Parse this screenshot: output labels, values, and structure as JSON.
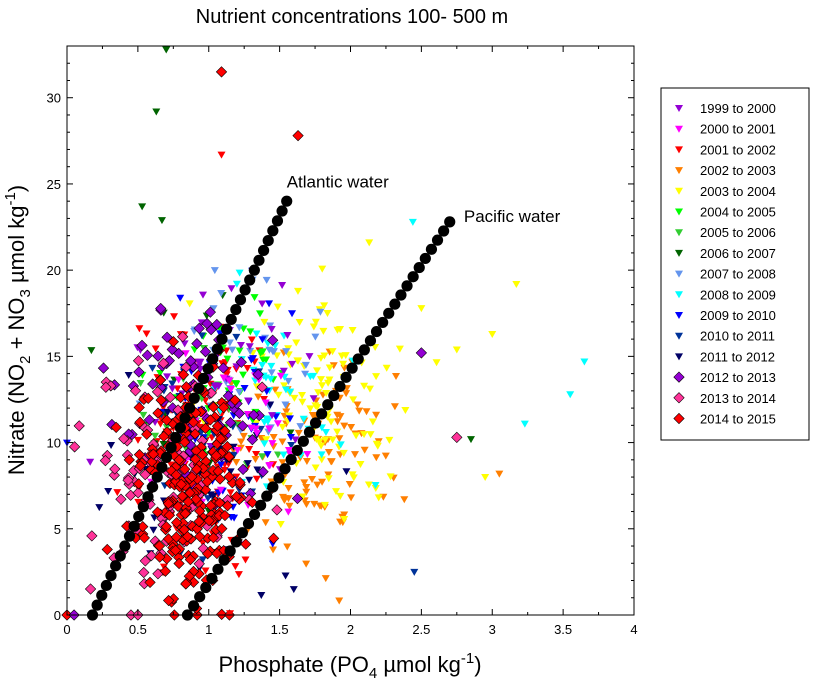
{
  "chart_data": {
    "type": "scatter",
    "title": "Nutrient concentrations 100- 500 m",
    "xlabel": {
      "pre": "Phosphate (PO",
      "sub": "4",
      "post": " µmol kg",
      "sup": "-1",
      "end": ")"
    },
    "ylabel": {
      "pre": "Nitrate (NO",
      "sub1": "2",
      "mid": " + NO",
      "sub2": "3",
      "post": " µmol kg",
      "sup": "-1",
      "end": ")"
    },
    "xlim": [
      0,
      4
    ],
    "ylim": [
      0,
      33
    ],
    "x_ticks": [
      0,
      0.5,
      1,
      1.5,
      2,
      2.5,
      3,
      3.5,
      4
    ],
    "x_tick_labels": [
      "0",
      "0.5",
      "1",
      "1.5",
      "2",
      "2.5",
      "3",
      "3.5",
      "4"
    ],
    "y_ticks": [
      0,
      5,
      10,
      15,
      20,
      25,
      30
    ],
    "y_tick_labels": [
      "0",
      "5",
      "10",
      "15",
      "20",
      "25",
      "30"
    ],
    "grid": false,
    "legend_position": "right",
    "legend": [
      {
        "label": "1999  to  2000",
        "color": "#9400D3",
        "marker": "triangle-down"
      },
      {
        "label": "2000  to  2001",
        "color": "#FF00FF",
        "marker": "triangle-down"
      },
      {
        "label": "2001  to  2002",
        "color": "#FF0000",
        "marker": "triangle-down"
      },
      {
        "label": "2002  to  2003",
        "color": "#FF7F00",
        "marker": "triangle-down"
      },
      {
        "label": "2003  to  2004",
        "color": "#FFFF00",
        "marker": "triangle-down"
      },
      {
        "label": "2004  to  2005",
        "color": "#00FF00",
        "marker": "triangle-down"
      },
      {
        "label": "2005  to  2006",
        "color": "#32CD32",
        "marker": "triangle-down"
      },
      {
        "label": "2006  to  2007",
        "color": "#006400",
        "marker": "triangle-down"
      },
      {
        "label": "2007  to  2008",
        "color": "#6495ED",
        "marker": "triangle-down"
      },
      {
        "label": "2008  to  2009",
        "color": "#00FFFF",
        "marker": "triangle-down"
      },
      {
        "label": "2009  to  2010",
        "color": "#0000FF",
        "marker": "triangle-down"
      },
      {
        "label": "2010  to  2011",
        "color": "#003399",
        "marker": "triangle-down"
      },
      {
        "label": "2011  to  2012",
        "color": "#000066",
        "marker": "triangle-down"
      },
      {
        "label": "2012  to  2013",
        "color": "#9400D3",
        "marker": "diamond"
      },
      {
        "label": "2013  to  2014",
        "color": "#FF3399",
        "marker": "diamond"
      },
      {
        "label": "2014  to  2015",
        "color": "#FF0000",
        "marker": "diamond"
      }
    ],
    "annotations": [
      {
        "text": "Atlantic water",
        "x": 1.55,
        "y": 24.8
      },
      {
        "text": "Pacific water",
        "x": 2.8,
        "y": 22.8
      }
    ],
    "reference_lines": [
      {
        "name": "Atlantic water",
        "color": "#000000",
        "marker": "circle",
        "points": [
          [
            0.18,
            0
          ],
          [
            1.55,
            24
          ]
        ]
      },
      {
        "name": "Pacific water",
        "color": "#000000",
        "marker": "circle",
        "points": [
          [
            0.85,
            0
          ],
          [
            2.7,
            22.8
          ]
        ]
      }
    ],
    "clusters": [
      {
        "series": 2,
        "n": 110,
        "cx": 0.9,
        "cy": 8.5,
        "sx": 0.22,
        "sy": 3.0
      },
      {
        "series": 2,
        "n": 30,
        "cx": 1.05,
        "cy": 14,
        "sx": 0.2,
        "sy": 1.5
      },
      {
        "series": 3,
        "n": 110,
        "cx": 1.75,
        "cy": 9.5,
        "sx": 0.28,
        "sy": 3.0
      },
      {
        "series": 4,
        "n": 110,
        "cx": 1.85,
        "cy": 13,
        "sx": 0.32,
        "sy": 2.8
      },
      {
        "series": 5,
        "n": 40,
        "cx": 1.15,
        "cy": 13.5,
        "sx": 0.25,
        "sy": 2.5
      },
      {
        "series": 6,
        "n": 30,
        "cx": 1.0,
        "cy": 12,
        "sx": 0.25,
        "sy": 2.5
      },
      {
        "series": 7,
        "n": 25,
        "cx": 0.85,
        "cy": 12,
        "sx": 0.25,
        "sy": 3.0
      },
      {
        "series": 8,
        "n": 40,
        "cx": 1.2,
        "cy": 15,
        "sx": 0.25,
        "sy": 2.2
      },
      {
        "series": 9,
        "n": 45,
        "cx": 1.45,
        "cy": 12,
        "sx": 0.3,
        "sy": 3.0
      },
      {
        "series": 10,
        "n": 45,
        "cx": 1.15,
        "cy": 11,
        "sx": 0.3,
        "sy": 3.5
      },
      {
        "series": 11,
        "n": 40,
        "cx": 0.95,
        "cy": 9,
        "sx": 0.3,
        "sy": 3.5
      },
      {
        "series": 12,
        "n": 45,
        "cx": 0.95,
        "cy": 7,
        "sx": 0.3,
        "sy": 3.5
      },
      {
        "series": 0,
        "n": 45,
        "cx": 1.05,
        "cy": 14,
        "sx": 0.3,
        "sy": 2.5
      },
      {
        "series": 1,
        "n": 35,
        "cx": 1.2,
        "cy": 11,
        "sx": 0.3,
        "sy": 2.5
      },
      {
        "series": 13,
        "n": 80,
        "cx": 0.9,
        "cy": 12.5,
        "sx": 0.28,
        "sy": 3.0
      },
      {
        "series": 14,
        "n": 110,
        "cx": 0.7,
        "cy": 8.5,
        "sx": 0.28,
        "sy": 3.5
      },
      {
        "series": 15,
        "n": 240,
        "cx": 0.88,
        "cy": 8.0,
        "sx": 0.2,
        "sy": 3.2
      }
    ],
    "points": [
      {
        "series": 7,
        "x": 0.7,
        "y": 32.8
      },
      {
        "series": 7,
        "x": 0.63,
        "y": 29.2
      },
      {
        "series": 7,
        "x": 0.53,
        "y": 23.7
      },
      {
        "series": 7,
        "x": 0.67,
        "y": 22.9
      },
      {
        "series": 15,
        "x": 1.09,
        "y": 31.5
      },
      {
        "series": 15,
        "x": 1.63,
        "y": 27.8
      },
      {
        "series": 2,
        "x": 1.09,
        "y": 26.7
      },
      {
        "series": 9,
        "x": 2.44,
        "y": 22.8
      },
      {
        "series": 9,
        "x": 3.65,
        "y": 14.7
      },
      {
        "series": 9,
        "x": 3.55,
        "y": 12.8
      },
      {
        "series": 9,
        "x": 3.23,
        "y": 11.1
      },
      {
        "series": 4,
        "x": 3.17,
        "y": 19.2
      },
      {
        "series": 4,
        "x": 3.0,
        "y": 16.3
      },
      {
        "series": 4,
        "x": 2.75,
        "y": 15.4
      },
      {
        "series": 4,
        "x": 2.5,
        "y": 17.8
      },
      {
        "series": 4,
        "x": 2.95,
        "y": 8.0
      },
      {
        "series": 3,
        "x": 3.05,
        "y": 8.2
      },
      {
        "series": 11,
        "x": 2.45,
        "y": 2.5
      },
      {
        "series": 12,
        "x": 1.6,
        "y": 1.5
      },
      {
        "series": 10,
        "x": 0.0,
        "y": 10.0
      },
      {
        "series": 15,
        "x": 0.0,
        "y": 0.0
      },
      {
        "series": 13,
        "x": 0.05,
        "y": 0.0
      },
      {
        "series": 14,
        "x": 0.5,
        "y": 0.0
      },
      {
        "series": 2,
        "x": 1.15,
        "y": 0.1
      },
      {
        "series": 7,
        "x": 2.85,
        "y": 10.2
      },
      {
        "series": 14,
        "x": 2.75,
        "y": 10.3
      },
      {
        "series": 13,
        "x": 2.5,
        "y": 15.2
      }
    ]
  }
}
